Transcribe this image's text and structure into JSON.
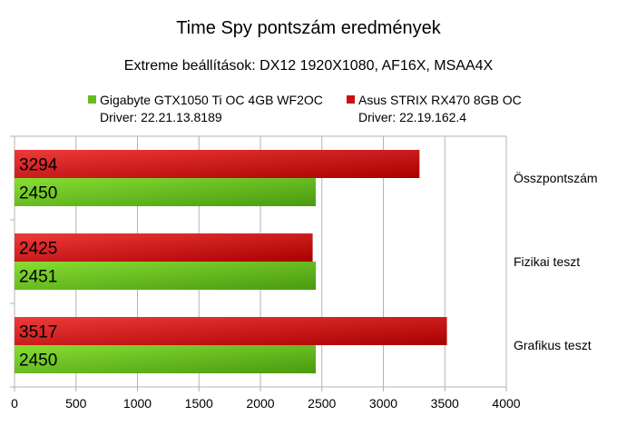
{
  "chart_data": {
    "type": "bar",
    "orientation": "horizontal",
    "title": "Time Spy pontszám eredmények",
    "subtitle": "Extreme beállítások: DX12 1920X1080, AF16X, MSAA4X",
    "categories": [
      "Összpontszám",
      "Fizikai teszt",
      "Grafikus teszt"
    ],
    "series": [
      {
        "name": "Asus STRIX RX470 8GB OC",
        "legend_sub": "Driver: 22.19.162.4",
        "color": "#cc1111",
        "values": [
          3294,
          2425,
          3517
        ]
      },
      {
        "name": "Gigabyte GTX1050 Ti OC 4GB WF2OC",
        "legend_sub": "Driver: 22.21.13.8189",
        "color": "#66bb22",
        "values": [
          2450,
          2451,
          2450
        ]
      }
    ],
    "xlim": [
      0,
      4000
    ],
    "xticks": [
      0,
      500,
      1000,
      1500,
      2000,
      2500,
      3000,
      3500,
      4000
    ],
    "xtick_labels": [
      "0",
      "500",
      "1000",
      "1500",
      "2000",
      "2500",
      "3000",
      "3500",
      "4000"
    ],
    "grid": true,
    "legend_position": "top"
  }
}
